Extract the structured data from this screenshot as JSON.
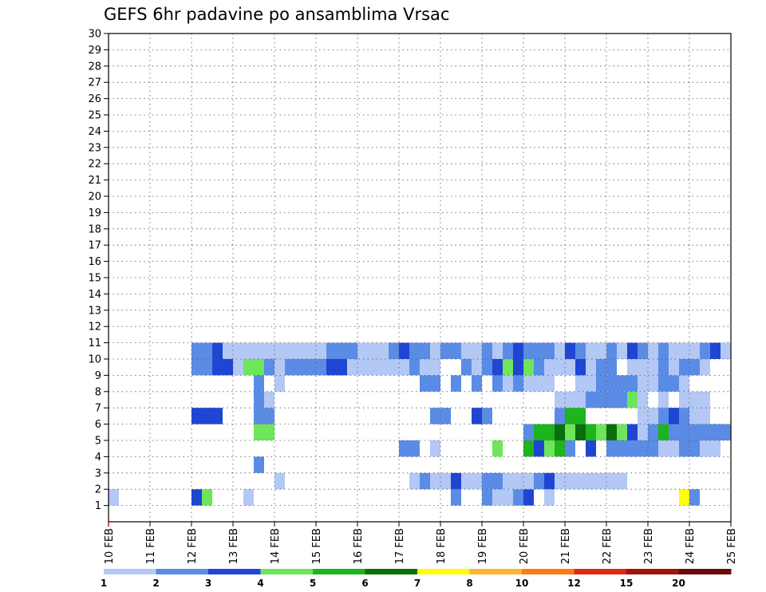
{
  "chart_data": {
    "type": "heatmap",
    "title": "GEFS 6hr padavine po ansamblima Vrsac",
    "xlabel": "",
    "ylabel": "",
    "x_ticks": [
      "10 FEB",
      "11 FEB",
      "12 FEB",
      "13 FEB",
      "14 FEB",
      "15 FEB",
      "16 FEB",
      "17 FEB",
      "18 FEB",
      "19 FEB",
      "20 FEB",
      "21 FEB",
      "22 FEB",
      "23 FEB",
      "24 FEB",
      "25 FEB"
    ],
    "y_ticks": [
      "1",
      "2",
      "3",
      "4",
      "5",
      "6",
      "7",
      "8",
      "9",
      "10",
      "11",
      "12",
      "13",
      "14",
      "15",
      "16",
      "17",
      "18",
      "19",
      "20",
      "21",
      "22",
      "23",
      "24",
      "25",
      "26",
      "27",
      "28",
      "29",
      "30"
    ],
    "x_range": [
      0,
      60
    ],
    "y_range": [
      0,
      30
    ],
    "grid": true,
    "legend": {
      "placement": "bottom",
      "labels": [
        "1",
        "2",
        "3",
        "4",
        "5",
        "6",
        "7",
        "8",
        "10",
        "12",
        "15",
        "20"
      ],
      "colors": [
        "#b4c8f5",
        "#5a8ce6",
        "#1e46d2",
        "#6ee65a",
        "#1eb41e",
        "#0a6e0a",
        "#ffff00",
        "#ffb432",
        "#ff7814",
        "#dc2814",
        "#a0140f",
        "#6e0a0a"
      ]
    },
    "cells": [
      [
        0,
        1,
        1
      ],
      [
        8,
        1,
        3
      ],
      [
        9,
        1,
        4
      ],
      [
        13,
        1,
        1
      ],
      [
        33,
        1,
        2
      ],
      [
        36,
        1,
        2
      ],
      [
        37,
        1,
        1
      ],
      [
        38,
        1,
        1
      ],
      [
        39,
        1,
        2
      ],
      [
        40,
        1,
        3
      ],
      [
        42,
        1,
        1
      ],
      [
        55,
        1,
        7
      ],
      [
        56,
        1,
        2
      ],
      [
        16,
        2,
        1
      ],
      [
        29,
        2,
        1
      ],
      [
        30,
        2,
        2
      ],
      [
        31,
        2,
        1
      ],
      [
        32,
        2,
        1
      ],
      [
        33,
        2,
        3
      ],
      [
        34,
        2,
        1
      ],
      [
        35,
        2,
        1
      ],
      [
        36,
        2,
        2
      ],
      [
        37,
        2,
        2
      ],
      [
        38,
        2,
        1
      ],
      [
        39,
        2,
        1
      ],
      [
        40,
        2,
        1
      ],
      [
        41,
        2,
        2
      ],
      [
        42,
        2,
        3
      ],
      [
        43,
        2,
        1
      ],
      [
        44,
        2,
        1
      ],
      [
        45,
        2,
        1
      ],
      [
        46,
        2,
        1
      ],
      [
        47,
        2,
        1
      ],
      [
        48,
        2,
        1
      ],
      [
        49,
        2,
        1
      ],
      [
        14,
        3,
        2
      ],
      [
        28,
        4,
        2
      ],
      [
        29,
        4,
        2
      ],
      [
        31,
        4,
        1
      ],
      [
        37,
        4,
        4
      ],
      [
        40,
        4,
        5
      ],
      [
        41,
        4,
        3
      ],
      [
        42,
        4,
        4
      ],
      [
        43,
        4,
        5
      ],
      [
        44,
        4,
        2
      ],
      [
        46,
        4,
        3
      ],
      [
        48,
        4,
        2
      ],
      [
        49,
        4,
        2
      ],
      [
        50,
        4,
        2
      ],
      [
        51,
        4,
        2
      ],
      [
        52,
        4,
        2
      ],
      [
        53,
        4,
        1
      ],
      [
        54,
        4,
        1
      ],
      [
        55,
        4,
        2
      ],
      [
        56,
        4,
        2
      ],
      [
        57,
        4,
        1
      ],
      [
        58,
        4,
        1
      ],
      [
        14,
        5,
        4
      ],
      [
        15,
        5,
        4
      ],
      [
        40,
        5,
        2
      ],
      [
        41,
        5,
        5
      ],
      [
        42,
        5,
        5
      ],
      [
        43,
        5,
        6
      ],
      [
        44,
        5,
        4
      ],
      [
        45,
        5,
        6
      ],
      [
        46,
        5,
        5
      ],
      [
        47,
        5,
        4
      ],
      [
        48,
        5,
        6
      ],
      [
        49,
        5,
        4
      ],
      [
        50,
        5,
        3
      ],
      [
        51,
        5,
        1
      ],
      [
        52,
        5,
        2
      ],
      [
        53,
        5,
        5
      ],
      [
        54,
        5,
        2
      ],
      [
        55,
        5,
        2
      ],
      [
        56,
        5,
        2
      ],
      [
        57,
        5,
        2
      ],
      [
        58,
        5,
        2
      ],
      [
        59,
        5,
        2
      ],
      [
        8,
        6,
        3
      ],
      [
        9,
        6,
        3
      ],
      [
        10,
        6,
        3
      ],
      [
        14,
        6,
        2
      ],
      [
        15,
        6,
        2
      ],
      [
        31,
        6,
        2
      ],
      [
        32,
        6,
        2
      ],
      [
        35,
        6,
        3
      ],
      [
        36,
        6,
        2
      ],
      [
        43,
        6,
        2
      ],
      [
        44,
        6,
        5
      ],
      [
        45,
        6,
        5
      ],
      [
        51,
        6,
        1
      ],
      [
        52,
        6,
        1
      ],
      [
        53,
        6,
        2
      ],
      [
        54,
        6,
        3
      ],
      [
        55,
        6,
        2
      ],
      [
        56,
        6,
        1
      ],
      [
        57,
        6,
        1
      ],
      [
        14,
        7,
        2
      ],
      [
        15,
        7,
        1
      ],
      [
        43,
        7,
        1
      ],
      [
        44,
        7,
        1
      ],
      [
        45,
        7,
        1
      ],
      [
        46,
        7,
        2
      ],
      [
        47,
        7,
        2
      ],
      [
        48,
        7,
        2
      ],
      [
        49,
        7,
        2
      ],
      [
        50,
        7,
        4
      ],
      [
        51,
        7,
        1
      ],
      [
        53,
        7,
        1
      ],
      [
        55,
        7,
        1
      ],
      [
        56,
        7,
        1
      ],
      [
        57,
        7,
        1
      ],
      [
        14,
        8,
        2
      ],
      [
        16,
        8,
        1
      ],
      [
        30,
        8,
        2
      ],
      [
        31,
        8,
        2
      ],
      [
        33,
        8,
        2
      ],
      [
        35,
        8,
        2
      ],
      [
        37,
        8,
        2
      ],
      [
        38,
        8,
        1
      ],
      [
        39,
        8,
        2
      ],
      [
        40,
        8,
        1
      ],
      [
        41,
        8,
        1
      ],
      [
        42,
        8,
        1
      ],
      [
        45,
        8,
        1
      ],
      [
        46,
        8,
        1
      ],
      [
        47,
        8,
        2
      ],
      [
        48,
        8,
        2
      ],
      [
        49,
        8,
        2
      ],
      [
        50,
        8,
        2
      ],
      [
        51,
        8,
        1
      ],
      [
        52,
        8,
        1
      ],
      [
        53,
        8,
        2
      ],
      [
        54,
        8,
        2
      ],
      [
        55,
        8,
        1
      ],
      [
        8,
        9,
        2
      ],
      [
        9,
        9,
        2
      ],
      [
        10,
        9,
        3
      ],
      [
        11,
        9,
        3
      ],
      [
        12,
        9,
        1
      ],
      [
        13,
        9,
        4
      ],
      [
        14,
        9,
        4
      ],
      [
        15,
        9,
        2
      ],
      [
        16,
        9,
        1
      ],
      [
        17,
        9,
        2
      ],
      [
        18,
        9,
        2
      ],
      [
        19,
        9,
        2
      ],
      [
        20,
        9,
        2
      ],
      [
        21,
        9,
        3
      ],
      [
        22,
        9,
        3
      ],
      [
        23,
        9,
        1
      ],
      [
        24,
        9,
        1
      ],
      [
        25,
        9,
        1
      ],
      [
        26,
        9,
        1
      ],
      [
        27,
        9,
        1
      ],
      [
        28,
        9,
        1
      ],
      [
        29,
        9,
        2
      ],
      [
        30,
        9,
        1
      ],
      [
        31,
        9,
        1
      ],
      [
        34,
        9,
        2
      ],
      [
        35,
        9,
        1
      ],
      [
        36,
        9,
        2
      ],
      [
        37,
        9,
        3
      ],
      [
        38,
        9,
        4
      ],
      [
        39,
        9,
        3
      ],
      [
        40,
        9,
        4
      ],
      [
        41,
        9,
        2
      ],
      [
        42,
        9,
        1
      ],
      [
        43,
        9,
        1
      ],
      [
        44,
        9,
        1
      ],
      [
        45,
        9,
        3
      ],
      [
        46,
        9,
        1
      ],
      [
        47,
        9,
        2
      ],
      [
        48,
        9,
        2
      ],
      [
        50,
        9,
        1
      ],
      [
        51,
        9,
        1
      ],
      [
        52,
        9,
        1
      ],
      [
        53,
        9,
        2
      ],
      [
        54,
        9,
        1
      ],
      [
        55,
        9,
        2
      ],
      [
        56,
        9,
        2
      ],
      [
        57,
        9,
        1
      ],
      [
        8,
        10,
        2
      ],
      [
        9,
        10,
        2
      ],
      [
        10,
        10,
        3
      ],
      [
        11,
        10,
        1
      ],
      [
        12,
        10,
        1
      ],
      [
        13,
        10,
        1
      ],
      [
        14,
        10,
        1
      ],
      [
        15,
        10,
        1
      ],
      [
        16,
        10,
        1
      ],
      [
        17,
        10,
        1
      ],
      [
        18,
        10,
        1
      ],
      [
        19,
        10,
        1
      ],
      [
        20,
        10,
        1
      ],
      [
        21,
        10,
        2
      ],
      [
        22,
        10,
        2
      ],
      [
        23,
        10,
        2
      ],
      [
        24,
        10,
        1
      ],
      [
        25,
        10,
        1
      ],
      [
        26,
        10,
        1
      ],
      [
        27,
        10,
        2
      ],
      [
        28,
        10,
        3
      ],
      [
        29,
        10,
        2
      ],
      [
        30,
        10,
        2
      ],
      [
        31,
        10,
        1
      ],
      [
        32,
        10,
        2
      ],
      [
        33,
        10,
        2
      ],
      [
        34,
        10,
        1
      ],
      [
        35,
        10,
        1
      ],
      [
        36,
        10,
        2
      ],
      [
        37,
        10,
        1
      ],
      [
        38,
        10,
        2
      ],
      [
        39,
        10,
        3
      ],
      [
        40,
        10,
        2
      ],
      [
        41,
        10,
        2
      ],
      [
        42,
        10,
        2
      ],
      [
        43,
        10,
        1
      ],
      [
        44,
        10,
        3
      ],
      [
        45,
        10,
        2
      ],
      [
        46,
        10,
        1
      ],
      [
        47,
        10,
        1
      ],
      [
        48,
        10,
        2
      ],
      [
        49,
        10,
        1
      ],
      [
        50,
        10,
        3
      ],
      [
        51,
        10,
        2
      ],
      [
        52,
        10,
        1
      ],
      [
        53,
        10,
        2
      ],
      [
        54,
        10,
        1
      ],
      [
        55,
        10,
        1
      ],
      [
        56,
        10,
        1
      ],
      [
        57,
        10,
        2
      ],
      [
        58,
        10,
        3
      ],
      [
        59,
        10,
        1
      ]
    ]
  }
}
